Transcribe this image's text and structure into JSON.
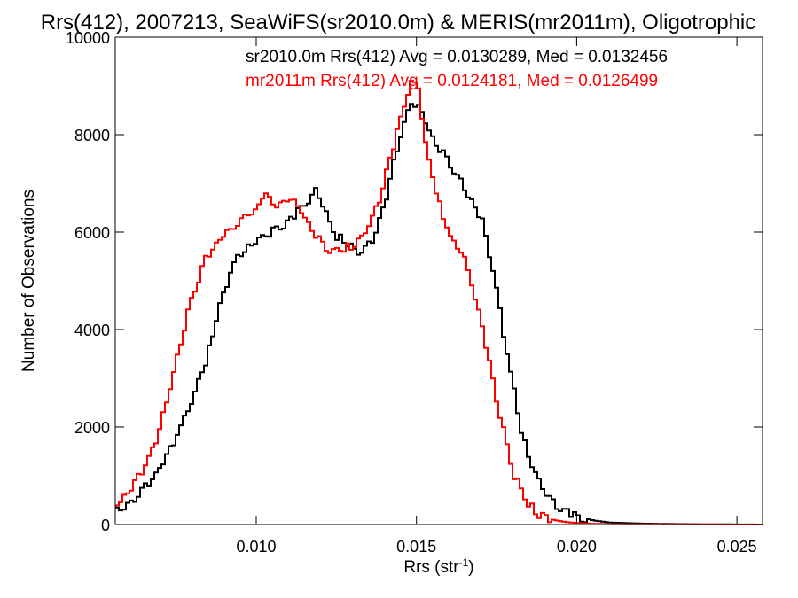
{
  "chart_data": {
    "type": "line",
    "title": "Rrs(412), 2007213, SeaWiFS(sr2010.0m) & MERIS(mr2011m), Oligotrophic",
    "xlabel_main": "Rrs (str",
    "xlabel_sup": "-1",
    "xlabel_close": ")",
    "ylabel": "Number of Observations",
    "xlim": [
      0.0056,
      0.0258
    ],
    "ylim": [
      0,
      10000
    ],
    "xticks": [
      0.01,
      0.015,
      0.02,
      0.025
    ],
    "xtick_labels": [
      "0.010",
      "0.015",
      "0.020",
      "0.025"
    ],
    "yticks": [
      0,
      2000,
      4000,
      6000,
      8000,
      10000
    ],
    "ytick_labels": [
      "0",
      "2000",
      "4000",
      "6000",
      "8000",
      "10000"
    ],
    "grid": false,
    "legend_placement": "top",
    "series": [
      {
        "name": "sr2010.0m",
        "stats_label": "sr2010.0m Rrs(412) Avg = 0.0130289, Med = 0.0132456",
        "color": "#000000",
        "x": [
          0.0056,
          0.006,
          0.0064,
          0.0068,
          0.0072,
          0.0076,
          0.008,
          0.0084,
          0.0088,
          0.0092,
          0.0096,
          0.01,
          0.0104,
          0.0108,
          0.0112,
          0.0116,
          0.0118,
          0.012,
          0.0124,
          0.0128,
          0.0132,
          0.0136,
          0.014,
          0.0144,
          0.0148,
          0.015,
          0.0154,
          0.0158,
          0.0162,
          0.0166,
          0.017,
          0.0174,
          0.0178,
          0.0182,
          0.0186,
          0.019,
          0.0195,
          0.02,
          0.0205,
          0.021,
          0.022,
          0.023,
          0.024,
          0.0258
        ],
        "values": [
          300,
          450,
          700,
          1000,
          1500,
          2000,
          2650,
          3400,
          4500,
          5300,
          5650,
          5850,
          6000,
          6150,
          6400,
          6650,
          6850,
          6600,
          5950,
          5750,
          5550,
          5850,
          6700,
          7900,
          8700,
          8600,
          8000,
          7600,
          7200,
          6700,
          6200,
          5000,
          3400,
          2000,
          1100,
          600,
          300,
          160,
          80,
          40,
          20,
          10,
          5,
          0
        ]
      },
      {
        "name": "mr2011m",
        "stats_label": "mr2011m Rrs(412) Avg = 0.0124181, Med = 0.0126499",
        "color": "#ff0000",
        "x": [
          0.0056,
          0.006,
          0.0064,
          0.0068,
          0.0072,
          0.0076,
          0.008,
          0.0084,
          0.0088,
          0.0092,
          0.0096,
          0.01,
          0.0102,
          0.0106,
          0.011,
          0.0114,
          0.0118,
          0.0122,
          0.0126,
          0.013,
          0.0134,
          0.0138,
          0.0142,
          0.0146,
          0.0148,
          0.015,
          0.0152,
          0.0156,
          0.016,
          0.0164,
          0.0168,
          0.0172,
          0.0176,
          0.018,
          0.0184,
          0.0188,
          0.0192,
          0.0196,
          0.02,
          0.0205,
          0.021,
          0.022,
          0.023,
          0.0258
        ],
        "values": [
          400,
          700,
          1100,
          1700,
          2600,
          3800,
          4800,
          5500,
          5850,
          6100,
          6300,
          6500,
          6800,
          6550,
          6700,
          6400,
          5950,
          5650,
          5650,
          5750,
          6050,
          6700,
          7700,
          8700,
          9100,
          9000,
          7900,
          6700,
          5900,
          5600,
          4600,
          3400,
          2100,
          1000,
          450,
          200,
          100,
          50,
          30,
          15,
          8,
          4,
          2,
          0
        ]
      }
    ]
  }
}
